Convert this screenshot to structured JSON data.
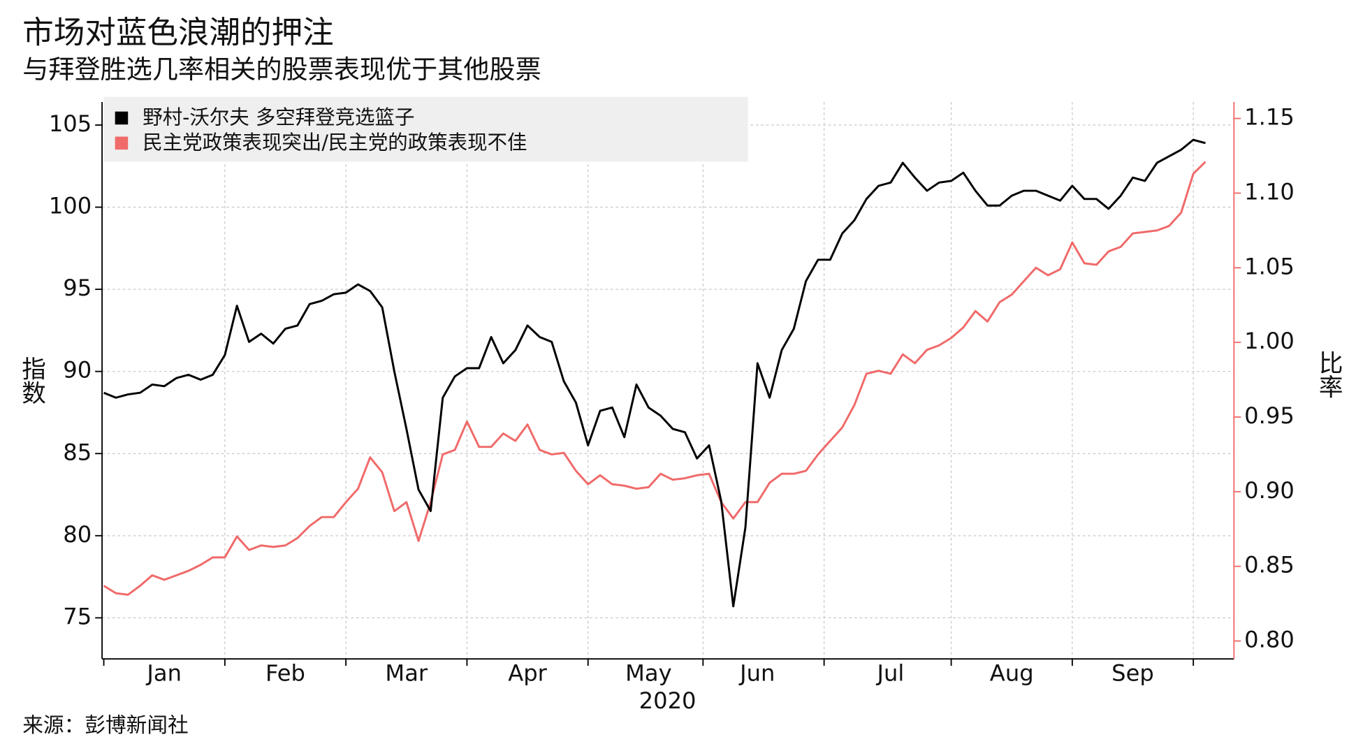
{
  "chart_data": {
    "type": "line",
    "title": "市场对蓝色浪潮的押注",
    "subtitle": "与拜登胜选几率相关的股票表现优于其他股票",
    "source": "来源：彭博新闻社",
    "xlabel": "2020",
    "ylabel": "指数",
    "y2label": "比率",
    "categories": [
      null,
      null,
      null,
      null,
      null,
      "Jan",
      null,
      null,
      null,
      null,
      null,
      null,
      null,
      null,
      null,
      "Feb",
      null,
      null,
      null,
      null,
      null,
      null,
      null,
      null,
      null,
      "Mar",
      null,
      null,
      null,
      null,
      null,
      null,
      null,
      null,
      null,
      "Apr",
      null,
      null,
      null,
      null,
      null,
      null,
      null,
      null,
      null,
      "May",
      null,
      null,
      null,
      null,
      null,
      null,
      null,
      null,
      "Jun",
      null,
      null,
      null,
      null,
      null,
      null,
      null,
      null,
      null,
      null,
      "Jul",
      null,
      null,
      null,
      null,
      null,
      null,
      null,
      null,
      null,
      "Aug",
      null,
      null,
      null,
      null,
      null,
      null,
      null,
      null,
      null,
      "Sep",
      null,
      null,
      null,
      null,
      null,
      null
    ],
    "series": [
      {
        "name": "野村-沃尔夫 多空拜登竞选篮子",
        "color": "#000000",
        "axis": "y",
        "values": [
          88.7,
          88.4,
          88.6,
          88.7,
          89.2,
          89.1,
          89.6,
          89.8,
          89.5,
          89.8,
          91.0,
          94.0,
          91.8,
          92.3,
          91.7,
          92.6,
          92.8,
          94.1,
          94.3,
          94.7,
          94.8,
          95.3,
          94.9,
          93.9,
          90.0,
          86.5,
          82.8,
          81.5,
          88.4,
          89.7,
          90.2,
          90.2,
          92.1,
          90.5,
          91.3,
          92.8,
          92.1,
          91.8,
          89.4,
          88.1,
          85.5,
          87.6,
          87.8,
          86.0,
          89.2,
          87.8,
          87.3,
          86.5,
          86.3,
          84.7,
          85.5,
          82.1,
          75.7,
          80.5,
          90.5,
          88.4,
          91.3,
          92.6,
          95.5,
          96.8,
          96.8,
          98.4,
          99.2,
          100.5,
          101.3,
          101.5,
          102.7,
          101.8,
          101.0,
          101.5,
          101.6,
          102.1,
          101.0,
          100.1,
          100.1,
          100.7,
          101.0,
          101.0,
          100.7,
          100.4,
          101.3,
          100.5,
          100.5,
          99.9,
          100.7,
          101.8,
          101.6,
          102.7,
          103.1,
          103.5,
          104.1,
          103.9
        ]
      },
      {
        "name": "民主党政策表现突出/民主党的政策表现不佳",
        "color": "#f06a6a",
        "axis": "y2",
        "values": [
          0.837,
          0.832,
          0.831,
          0.837,
          0.844,
          0.841,
          0.844,
          0.847,
          0.851,
          0.856,
          0.856,
          0.87,
          0.861,
          0.864,
          0.863,
          0.864,
          0.869,
          0.877,
          0.883,
          0.883,
          0.893,
          0.902,
          0.923,
          0.913,
          0.887,
          0.893,
          0.867,
          0.893,
          0.925,
          0.928,
          0.947,
          0.93,
          0.93,
          0.939,
          0.934,
          0.945,
          0.928,
          0.925,
          0.926,
          0.914,
          0.905,
          0.911,
          0.905,
          0.904,
          0.902,
          0.903,
          0.912,
          0.908,
          0.909,
          0.911,
          0.912,
          0.893,
          0.882,
          0.893,
          0.893,
          0.906,
          0.912,
          0.912,
          0.914,
          0.925,
          0.934,
          0.943,
          0.958,
          0.979,
          0.981,
          0.979,
          0.992,
          0.986,
          0.995,
          0.998,
          1.003,
          1.01,
          1.021,
          1.014,
          1.027,
          1.032,
          1.041,
          1.05,
          1.045,
          1.049,
          1.067,
          1.053,
          1.052,
          1.061,
          1.064,
          1.073,
          1.074,
          1.075,
          1.078,
          1.087,
          1.113,
          1.121
        ]
      }
    ],
    "ylim": [
      72.5,
      106.4
    ],
    "yticks": [
      75,
      80,
      85,
      90,
      95,
      100,
      105
    ],
    "y2lim": [
      0.788,
      1.161
    ],
    "y2ticks": [
      {
        "value": 0.8,
        "label": "0.80"
      },
      0.85,
      {
        "value": 0.9,
        "label": "0.90"
      },
      0.95,
      {
        "value": 1.0,
        "label": "1.00"
      },
      1.05,
      {
        "value": 1.1,
        "label": "1.10"
      },
      1.15
    ],
    "y2color": "#f06a6a",
    "grid": true,
    "legend": "upper left"
  }
}
